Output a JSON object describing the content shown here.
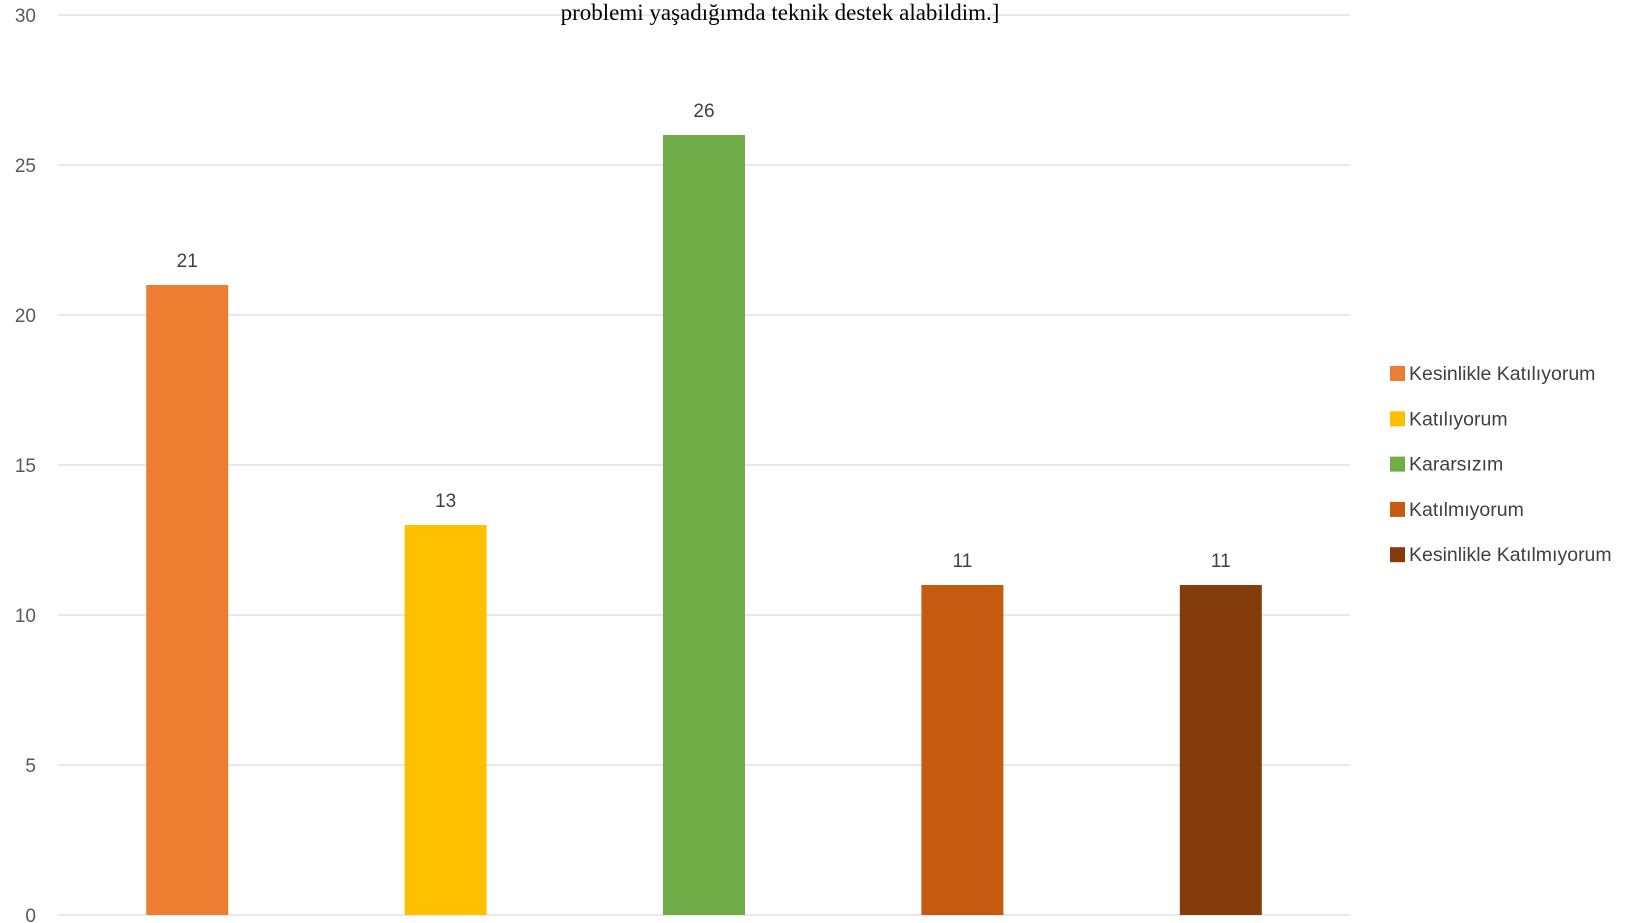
{
  "chart_data": {
    "type": "bar",
    "title": "problemi yaşadığımda teknik destek alabildim.]",
    "ylim": [
      0,
      30
    ],
    "yticks": [
      0,
      5,
      10,
      15,
      20,
      25,
      30
    ],
    "grid": true,
    "legend_position": "right",
    "categories": [
      "Kesinlikle Katılıyorum",
      "Katılıyorum",
      "Kararsızım",
      "Katılmıyorum",
      "Kesinlikle Katılmıyorum"
    ],
    "values": [
      21,
      13,
      26,
      11,
      11
    ],
    "colors": [
      "#ed7d31",
      "#ffc000",
      "#70ad47",
      "#c55a11",
      "#843c0c"
    ]
  }
}
